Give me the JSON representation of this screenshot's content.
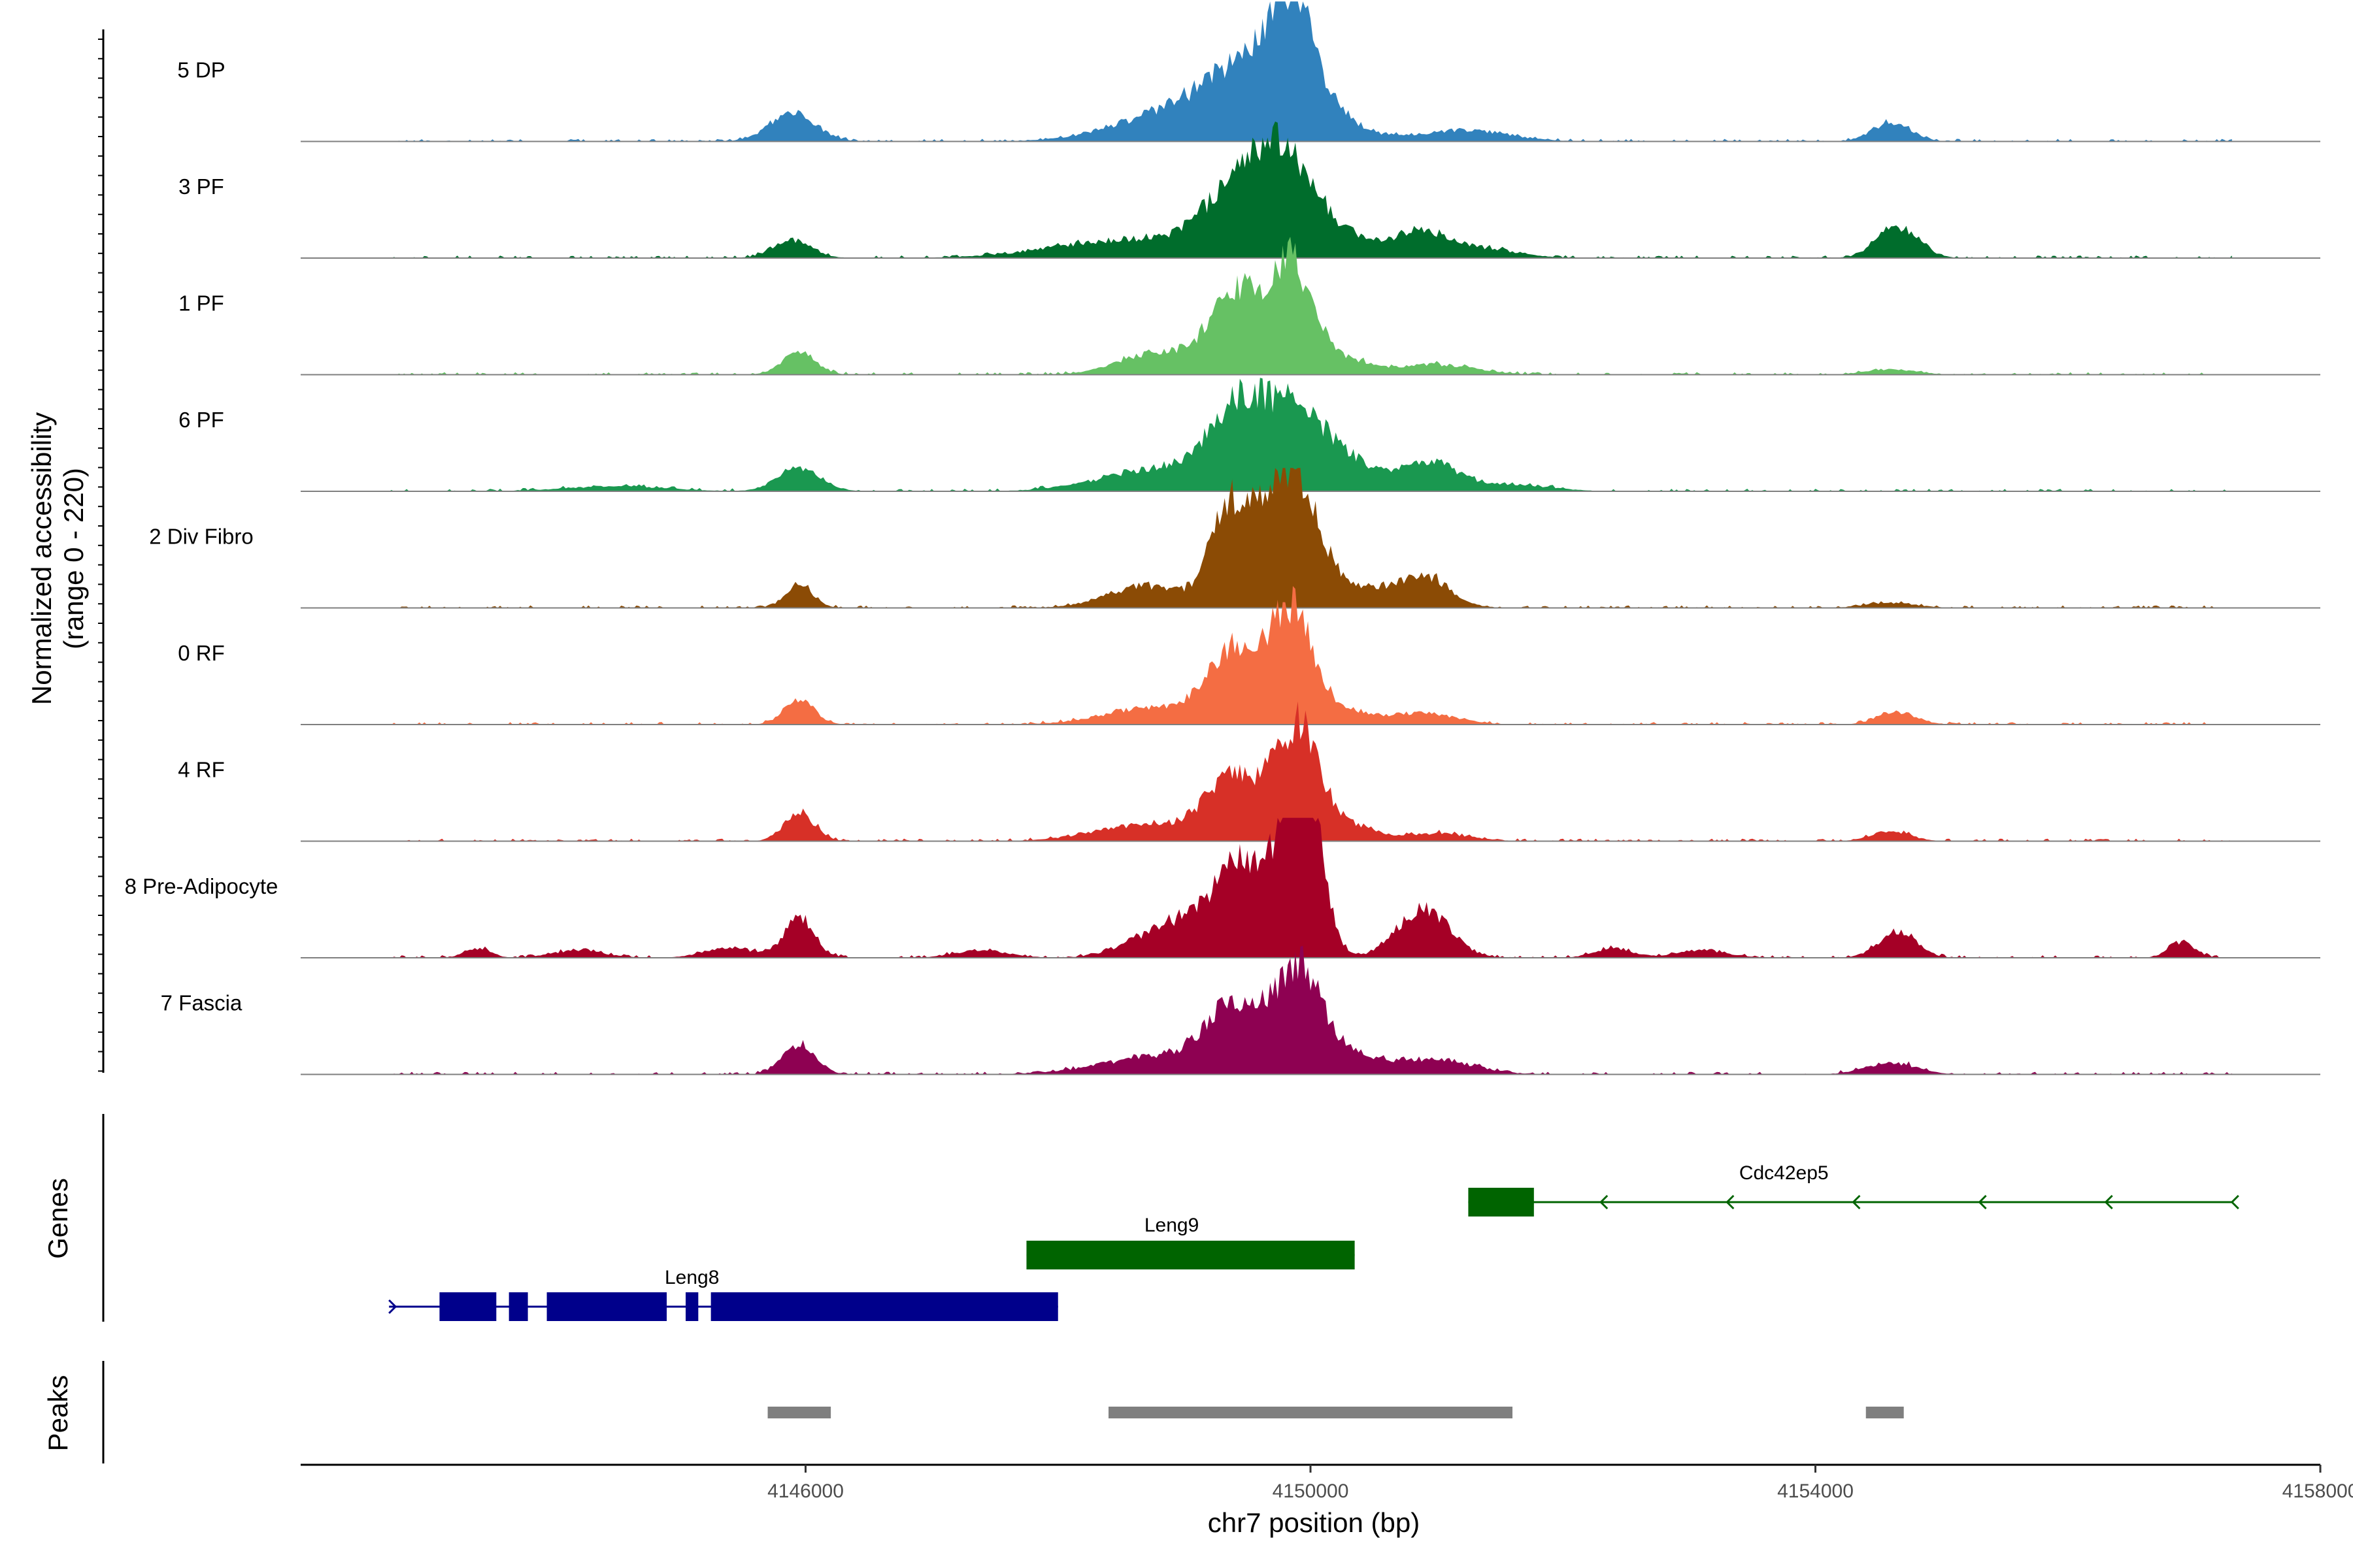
{
  "chart_data": {
    "type": "area",
    "title": "",
    "ylabel_line1": "Normalized accessibility",
    "ylabel_line2": "(range 0 - 220)",
    "yrange": [
      0,
      220
    ],
    "xlabel": "chr7 position (bp)",
    "xlim": [
      4142000,
      4158000
    ],
    "xticks": [
      4146000,
      4150000,
      4154000,
      4158000
    ],
    "xtick_labels": [
      "4146000",
      "4150000",
      "4154000",
      "4158000"
    ],
    "tracks": [
      {
        "name": "5 DP",
        "color": "#3182bd",
        "peaks": [
          [
            4145900,
            45,
            180
          ],
          [
            4149100,
            60,
            500
          ],
          [
            4149500,
            80,
            250
          ],
          [
            4149850,
            170,
            160
          ],
          [
            4150100,
            45,
            250
          ],
          [
            4151200,
            18,
            350
          ],
          [
            4154600,
            30,
            150
          ]
        ]
      },
      {
        "name": "3 PF",
        "color": "#006d2c",
        "peaks": [
          [
            4145900,
            28,
            150
          ],
          [
            4148600,
            30,
            600
          ],
          [
            4149400,
            95,
            250
          ],
          [
            4149800,
            140,
            220
          ],
          [
            4150200,
            35,
            250
          ],
          [
            4150850,
            40,
            200
          ],
          [
            4151300,
            16,
            300
          ],
          [
            4154650,
            50,
            160
          ]
        ]
      },
      {
        "name": "1 PF",
        "color": "#66c164",
        "peaks": [
          [
            4145950,
            36,
            130
          ],
          [
            4148800,
            35,
            300
          ],
          [
            4149400,
            120,
            200
          ],
          [
            4149850,
            170,
            180
          ],
          [
            4150300,
            20,
            200
          ],
          [
            4151000,
            16,
            300
          ],
          [
            4154600,
            8,
            200
          ]
        ]
      },
      {
        "name": "6 PF",
        "color": "#1a9850",
        "peaks": [
          [
            4145950,
            36,
            170
          ],
          [
            4148800,
            35,
            450
          ],
          [
            4149400,
            110,
            220
          ],
          [
            4149850,
            120,
            250
          ],
          [
            4150300,
            40,
            250
          ],
          [
            4150950,
            45,
            220
          ],
          [
            4151600,
            10,
            300
          ],
          [
            4144500,
            8,
            400
          ]
        ]
      },
      {
        "name": "2 Div Fibro",
        "color": "#8b4b05",
        "peaks": [
          [
            4145950,
            36,
            110
          ],
          [
            4148700,
            35,
            300
          ],
          [
            4149350,
            150,
            150
          ],
          [
            4149650,
            110,
            150
          ],
          [
            4149900,
            170,
            170
          ],
          [
            4150300,
            35,
            250
          ],
          [
            4150900,
            50,
            200
          ],
          [
            4154600,
            8,
            200
          ]
        ]
      },
      {
        "name": "0 RF",
        "color": "#f46d43",
        "peaks": [
          [
            4145950,
            38,
            120
          ],
          [
            4148800,
            28,
            400
          ],
          [
            4149400,
            110,
            200
          ],
          [
            4149850,
            175,
            170
          ],
          [
            4150300,
            20,
            200
          ],
          [
            4150900,
            18,
            250
          ],
          [
            4154650,
            20,
            150
          ]
        ]
      },
      {
        "name": "4 RF",
        "color": "#d73027",
        "peaks": [
          [
            4145950,
            45,
            120
          ],
          [
            4148700,
            26,
            400
          ],
          [
            4149400,
            100,
            220
          ],
          [
            4149900,
            175,
            170
          ],
          [
            4150300,
            25,
            200
          ],
          [
            4151000,
            12,
            250
          ],
          [
            4154600,
            16,
            150
          ]
        ]
      },
      {
        "name": "8 Pre-Adipocyte",
        "color": "#a50026",
        "peaks": [
          [
            4145950,
            60,
            120
          ],
          [
            4149100,
            65,
            300
          ],
          [
            4149400,
            95,
            150
          ],
          [
            4149800,
            150,
            200
          ],
          [
            4149950,
            200,
            130
          ],
          [
            4150900,
            80,
            200
          ],
          [
            4154650,
            40,
            150
          ],
          [
            4143400,
            15,
            100
          ],
          [
            4144200,
            12,
            200
          ],
          [
            4145400,
            15,
            200
          ],
          [
            4147400,
            12,
            200
          ],
          [
            4148600,
            14,
            200
          ],
          [
            4156900,
            25,
            100
          ],
          [
            4152400,
            15,
            150
          ],
          [
            4153100,
            12,
            200
          ]
        ]
      },
      {
        "name": "7 Fascia",
        "color": "#8e0152",
        "peaks": [
          [
            4145950,
            45,
            130
          ],
          [
            4148800,
            28,
            450
          ],
          [
            4149400,
            100,
            220
          ],
          [
            4149900,
            160,
            180
          ],
          [
            4150300,
            30,
            250
          ],
          [
            4151000,
            22,
            300
          ],
          [
            4154600,
            18,
            200
          ]
        ]
      }
    ],
    "genes_label": "Genes",
    "genes": [
      {
        "name": "Leng8",
        "color": "#00008b",
        "start": 4142700,
        "end": 4148000,
        "strand": "-",
        "exons": [
          [
            4143100,
            4143550
          ],
          [
            4143650,
            4143800
          ],
          [
            4143950,
            4144900
          ],
          [
            4145050,
            4145150
          ],
          [
            4145250,
            4148000
          ]
        ]
      },
      {
        "name": "Leng9",
        "color": "#006400",
        "start": 4147750,
        "end": 4150350,
        "strand": "-",
        "exons": [
          [
            4147750,
            4150350
          ]
        ]
      },
      {
        "name": "Cdc42ep5",
        "color": "#006400",
        "start": 4151250,
        "end": 4157300,
        "strand": "-",
        "exons": [
          [
            4151250,
            4151770
          ]
        ]
      }
    ],
    "peaks_label": "Peaks",
    "peak_regions": [
      [
        4145700,
        4146200
      ],
      [
        4148400,
        4151600
      ],
      [
        4154400,
        4154700
      ]
    ]
  }
}
